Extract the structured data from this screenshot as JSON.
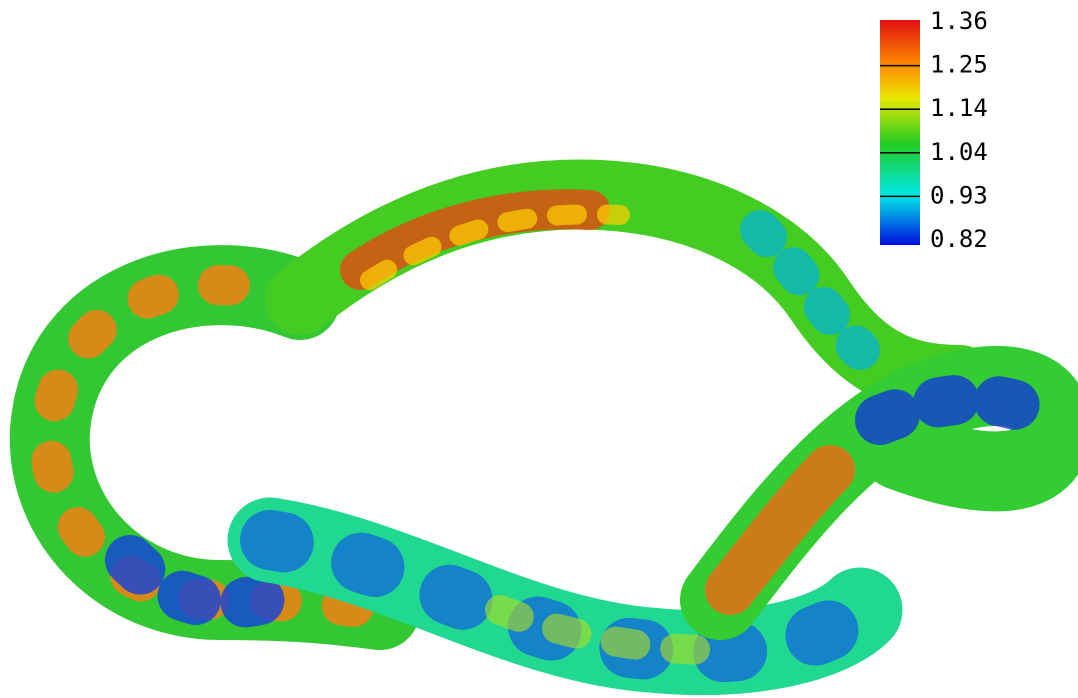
{
  "colorbar": {
    "labels": [
      "1.36",
      "1.25",
      "1.14",
      "1.04",
      "0.93",
      "0.82"
    ]
  }
}
